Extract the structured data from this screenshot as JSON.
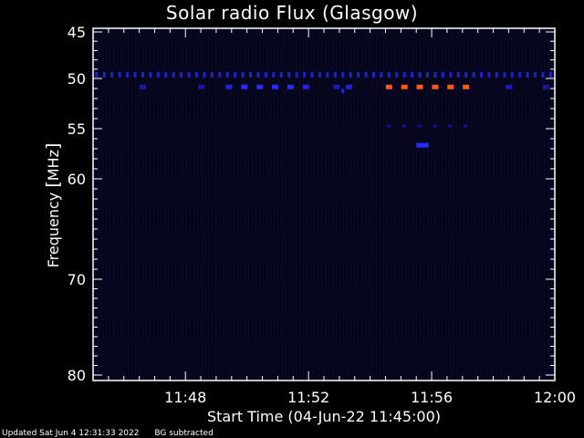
{
  "chart_data": {
    "type": "heatmap",
    "title": "Solar radio Flux (Glasgow)",
    "xlabel": "Start Time (04-Jun-22 11:45:00)",
    "ylabel_text": "Frequency ",
    "ylabel_unit": "MHz",
    "x_range_minutes": [
      0,
      15
    ],
    "x_ticks": [
      {
        "value": 3,
        "label": "11:48"
      },
      {
        "value": 7,
        "label": "11:52"
      },
      {
        "value": 11,
        "label": "11:56"
      },
      {
        "value": 15,
        "label": "12:00"
      }
    ],
    "y_range_mhz": [
      45,
      80
    ],
    "y_ticks": [
      45,
      50,
      55,
      60,
      70,
      80
    ],
    "background_color": "#05051a",
    "features": {
      "band_49_6_mhz": {
        "freq": 49.6,
        "t_start": 0,
        "t_end": 15,
        "period": 0.25,
        "color": "#2020c8"
      },
      "band_50_8_mhz": [
        {
          "freq": 50.8,
          "t": 1.6,
          "color": "#1818b0"
        },
        {
          "freq": 50.8,
          "t": 3.5,
          "color": "#1515a0"
        },
        {
          "freq": 50.8,
          "t": 4.4,
          "color": "#2222e0"
        },
        {
          "freq": 50.8,
          "t": 4.9,
          "color": "#2a2aff"
        },
        {
          "freq": 50.8,
          "t": 5.4,
          "color": "#2a2aff"
        },
        {
          "freq": 50.8,
          "t": 5.9,
          "color": "#2a2aff"
        },
        {
          "freq": 50.8,
          "t": 6.4,
          "color": "#2a2aff"
        },
        {
          "freq": 50.8,
          "t": 6.9,
          "color": "#2222e0"
        },
        {
          "freq": 50.8,
          "t": 7.9,
          "color": "#1a1ac0"
        },
        {
          "freq": 50.8,
          "t": 8.3,
          "color": "#2020d8"
        },
        {
          "freq": 50.8,
          "t": 9.6,
          "color": "#ff5a14"
        },
        {
          "freq": 50.8,
          "t": 10.1,
          "color": "#ff5a14"
        },
        {
          "freq": 50.8,
          "t": 10.6,
          "color": "#ff5a14"
        },
        {
          "freq": 50.8,
          "t": 11.1,
          "color": "#ff5a14"
        },
        {
          "freq": 50.8,
          "t": 11.6,
          "color": "#ff5a14"
        },
        {
          "freq": 50.8,
          "t": 12.1,
          "color": "#ff5a14"
        },
        {
          "freq": 50.8,
          "t": 13.5,
          "color": "#1a1ac0"
        },
        {
          "freq": 50.8,
          "t": 14.7,
          "color": "#1818a8"
        }
      ],
      "band_54_mhz": {
        "freq": 54.7,
        "t_start": 9.6,
        "t_end": 12.2,
        "color": "#1010a0"
      },
      "band_56_5_mhz": {
        "freq": 56.6,
        "t_start": 10.5,
        "t_end": 10.9,
        "color": "#2a2aff"
      },
      "band_51_2_mhz": {
        "freq": 51.2,
        "t": 8.1,
        "color": "#2020e0"
      }
    }
  },
  "footer": {
    "updated": "Updated Sat Jun  4 12:31:33 2022",
    "note": "BG subtracted"
  },
  "colors": {
    "axis": "#ffffff",
    "text": "#ffffff",
    "page_bg": "#000000"
  }
}
